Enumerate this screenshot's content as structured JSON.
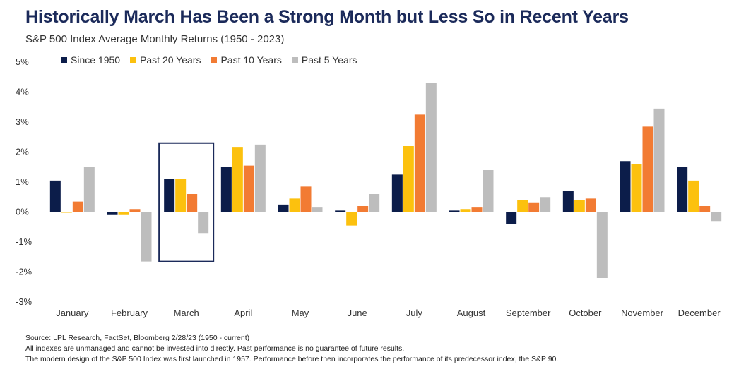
{
  "title": "Historically March Has Been a Strong Month but Less So in Recent Years",
  "subtitle": "S&P 500 Index Average Monthly Returns (1950 - 2023)",
  "colors": {
    "since_1950": "#0c1d4a",
    "past_20": "#fcc10e",
    "past_10": "#f27b33",
    "past_5": "#bdbdbd",
    "highlight": "#1b2a5a",
    "title": "#1b2a5a"
  },
  "chart_data": {
    "type": "bar",
    "title": "Historically March Has Been a Strong Month but Less So in Recent Years",
    "subtitle": "S&P 500 Index Average Monthly Returns (1950 - 2023)",
    "xlabel": "",
    "ylabel": "",
    "ylim": [
      -3,
      5
    ],
    "yticks": [
      "5%",
      "4%",
      "3%",
      "2%",
      "1%",
      "0%",
      "-1%",
      "-2%",
      "-3%"
    ],
    "ytick_values": [
      5,
      4,
      3,
      2,
      1,
      0,
      -1,
      -2,
      -3
    ],
    "grid": false,
    "legend_position": "top-left",
    "highlighted_category": "March",
    "categories": [
      "January",
      "February",
      "March",
      "April",
      "May",
      "June",
      "July",
      "August",
      "September",
      "October",
      "November",
      "December"
    ],
    "series": [
      {
        "name": "Since 1950",
        "color": "#0c1d4a",
        "values": [
          1.05,
          -0.1,
          1.1,
          1.5,
          0.25,
          0.05,
          1.25,
          0.05,
          -0.4,
          0.7,
          1.7,
          1.5
        ]
      },
      {
        "name": "Past 20 Years",
        "color": "#fcc10e",
        "values": [
          0.0,
          -0.1,
          1.1,
          2.15,
          0.45,
          -0.45,
          2.2,
          0.1,
          0.4,
          0.4,
          1.6,
          1.05
        ]
      },
      {
        "name": "Past 10 Years",
        "color": "#f27b33",
        "values": [
          0.35,
          0.1,
          0.6,
          1.55,
          0.85,
          0.2,
          3.25,
          0.15,
          0.3,
          0.45,
          2.85,
          0.2
        ]
      },
      {
        "name": "Past 5 Years",
        "color": "#bdbdbd",
        "values": [
          1.5,
          -1.65,
          -0.7,
          2.25,
          0.15,
          0.6,
          4.3,
          1.4,
          0.5,
          -2.2,
          3.45,
          -0.3
        ]
      }
    ]
  },
  "footnotes": [
    "Source: LPL Research, FactSet, Bloomberg 2/28/23  (1950 - current)",
    "All indexes are unmanaged and cannot be invested into directly. Past performance is no guarantee of future results.",
    "The modern design of the S&P 500 Index was first launched in 1957. Performance before then incorporates the performance of its  predecessor index, the S&P 90."
  ]
}
